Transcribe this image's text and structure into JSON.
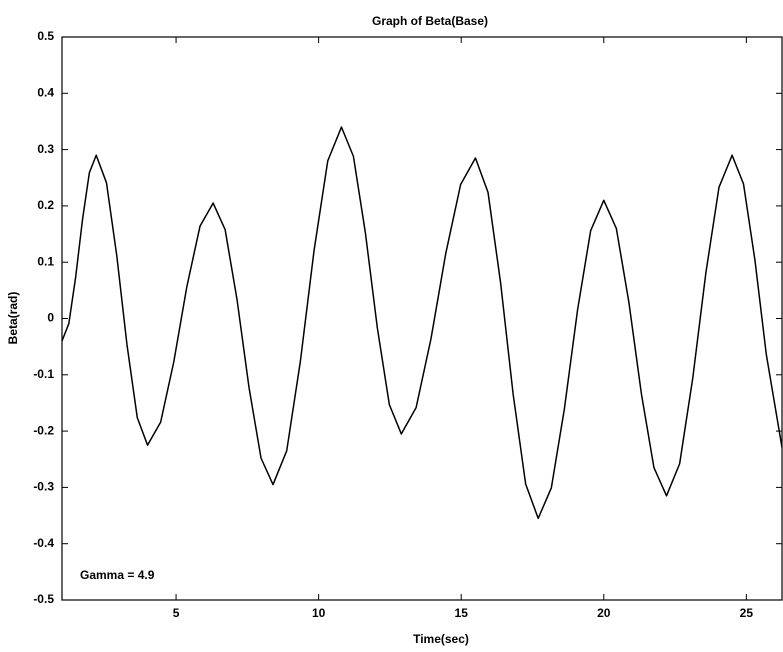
{
  "chart_data": {
    "type": "line",
    "title": "Graph of Beta(Base)",
    "x_label": "Time(sec)",
    "y_label": "Beta(rad)",
    "annotation": "Gamma = 4.9",
    "x": [
      1.0,
      1.24,
      1.48,
      1.72,
      1.96,
      2.2,
      2.56,
      2.92,
      3.28,
      3.64,
      4.0,
      4.46,
      4.92,
      5.38,
      5.84,
      6.3,
      6.72,
      7.14,
      7.56,
      7.98,
      8.4,
      8.88,
      9.36,
      9.84,
      10.32,
      10.8,
      11.22,
      11.64,
      12.06,
      12.48,
      12.9,
      13.42,
      13.94,
      14.46,
      14.98,
      15.5,
      15.94,
      16.38,
      16.82,
      17.26,
      17.7,
      18.16,
      18.62,
      19.08,
      19.54,
      20.0,
      20.44,
      20.88,
      21.32,
      21.76,
      22.2,
      22.66,
      23.12,
      23.58,
      24.04,
      24.5,
      24.9,
      25.3,
      25.7,
      26.25
    ],
    "series": [
      {
        "name": "Beta",
        "color": "#000000",
        "values": [
          -0.04,
          -0.009,
          0.074,
          0.176,
          0.259,
          0.29,
          0.241,
          0.112,
          -0.047,
          -0.176,
          -0.225,
          -0.184,
          -0.077,
          0.057,
          0.164,
          0.205,
          0.158,
          0.033,
          -0.123,
          -0.248,
          -0.295,
          -0.235,
          -0.076,
          0.121,
          0.28,
          0.34,
          0.288,
          0.152,
          -0.017,
          -0.153,
          -0.205,
          -0.158,
          -0.036,
          0.116,
          0.238,
          0.285,
          0.224,
          0.064,
          -0.134,
          -0.294,
          -0.355,
          -0.301,
          -0.16,
          0.015,
          0.156,
          0.21,
          0.16,
          0.029,
          -0.134,
          -0.265,
          -0.315,
          -0.258,
          -0.106,
          0.081,
          0.233,
          0.29,
          0.239,
          0.104,
          -0.064,
          -0.229
        ]
      }
    ],
    "xlim": [
      1,
      26.25
    ],
    "xticks": [
      5,
      10,
      15,
      20,
      25
    ],
    "ylim": [
      -0.5,
      0.5
    ],
    "yticks": [
      -0.5,
      -0.4,
      -0.3,
      -0.2,
      -0.1,
      0,
      0.1,
      0.2,
      0.3,
      0.4,
      0.5
    ]
  }
}
